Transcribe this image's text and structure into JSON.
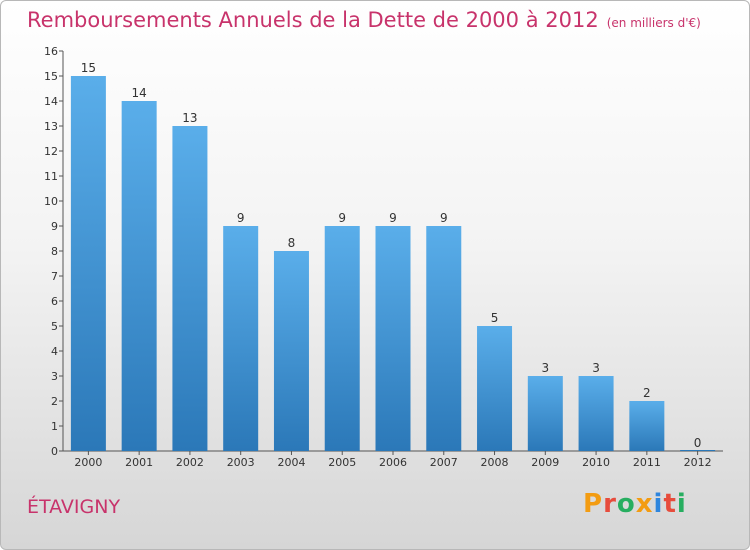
{
  "title": "Remboursements Annuels de la Dette de 2000 à 2012",
  "subtitle": "(en milliers d'€)",
  "commune": "ÉTAVIGNY",
  "logo": {
    "text": "Proxiti",
    "colors": [
      "#f39c12",
      "#e74c3c",
      "#27ae60",
      "#f39c12",
      "#2e86de",
      "#e74c3c",
      "#27ae60"
    ]
  },
  "colors": {
    "accent": "#c8336b",
    "bar_top": "#5aaeea",
    "bar_bottom": "#2b78b8"
  },
  "chart_data": {
    "type": "bar",
    "categories": [
      "2000",
      "2001",
      "2002",
      "2003",
      "2004",
      "2005",
      "2006",
      "2007",
      "2008",
      "2009",
      "2010",
      "2011",
      "2012"
    ],
    "values": [
      15,
      14,
      13,
      9,
      8,
      9,
      9,
      9,
      5,
      3,
      3,
      2,
      0
    ],
    "data_labels": [
      "15",
      "14",
      "13",
      "9",
      "8",
      "9",
      "9",
      "9",
      "5",
      "3",
      "3",
      "2",
      "0"
    ],
    "yticks": [
      "0",
      "1",
      "2",
      "3",
      "4",
      "5",
      "6",
      "7",
      "8",
      "9",
      "10",
      "11",
      "12",
      "13",
      "14",
      "15",
      "16"
    ],
    "ylim": [
      0,
      16
    ],
    "title": "Remboursements Annuels de la Dette de 2000 à 2012",
    "subtitle": "(en milliers d'€)",
    "xlabel": "",
    "ylabel": "",
    "grid": false,
    "legend": "none"
  }
}
